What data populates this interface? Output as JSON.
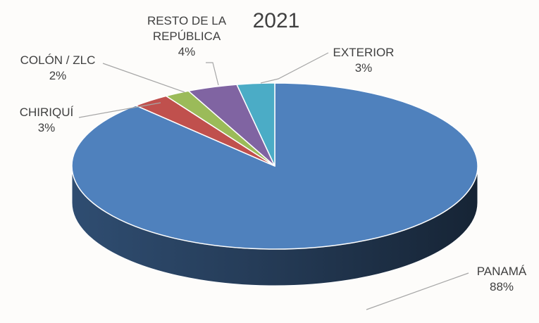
{
  "chart_data": {
    "type": "pie",
    "title": "2021",
    "categories": [
      "PANAMÁ",
      "CHIRIQUÍ",
      "COLÓN / ZLC",
      "RESTO DE LA REPÚBLICA",
      "EXTERIOR"
    ],
    "values": [
      88,
      3,
      2,
      4,
      3
    ],
    "value_labels": [
      "88%",
      "3%",
      "2%",
      "4%",
      "3%"
    ],
    "colors": [
      "#4f81bd",
      "#c0504d",
      "#9bbb59",
      "#8064a2",
      "#4bacc6"
    ]
  }
}
